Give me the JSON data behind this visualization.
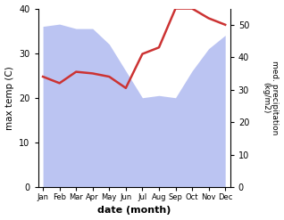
{
  "months": [
    "Jan",
    "Feb",
    "Mar",
    "Apr",
    "May",
    "Jun",
    "Jul",
    "Aug",
    "Sep",
    "Oct",
    "Nov",
    "Dec"
  ],
  "max_temp": [
    36.0,
    36.5,
    35.5,
    35.5,
    32.0,
    26.0,
    20.0,
    20.5,
    20.0,
    26.0,
    31.0,
    34.0
  ],
  "precipitation": [
    34.0,
    32.0,
    35.5,
    35.0,
    34.0,
    30.5,
    41.0,
    43.0,
    55.0,
    55.0,
    52.0,
    50.0
  ],
  "temp_fill_color": "#b0baf0",
  "temp_line_color": "#cc3333",
  "ylabel_left": "max temp (C)",
  "ylabel_right": "med. precipitation\n(kg/m2)",
  "xlabel": "date (month)",
  "ylim_left": [
    0,
    40
  ],
  "ylim_right": [
    0,
    55
  ],
  "yticks_left": [
    0,
    10,
    20,
    30,
    40
  ],
  "yticks_right": [
    0,
    10,
    20,
    30,
    40,
    50
  ],
  "bg_color": "#ffffff"
}
